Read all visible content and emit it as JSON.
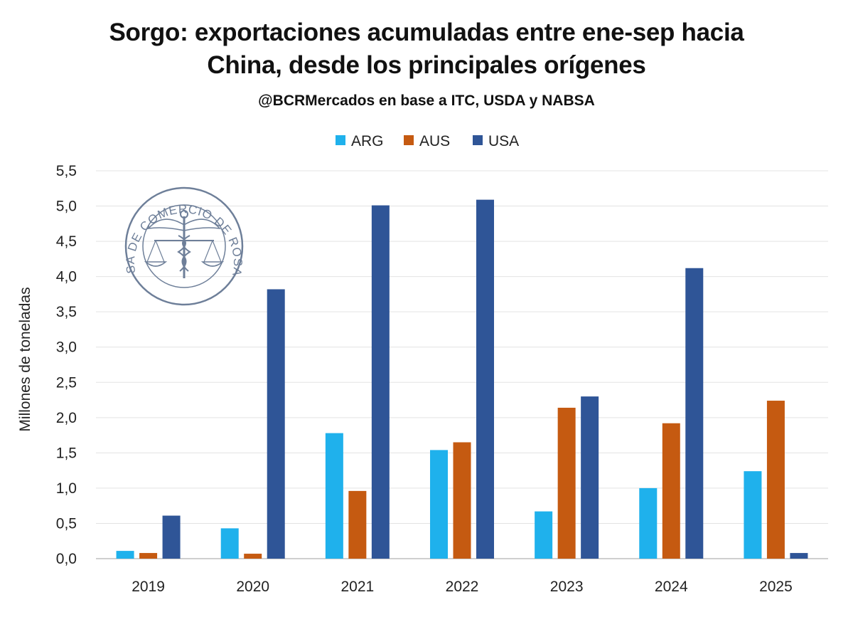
{
  "chart_data": {
    "type": "bar",
    "title_lines": [
      "Sorgo: exportaciones acumuladas entre ene-sep hacia",
      "China, desde los principales orígenes"
    ],
    "subtitle": "@BCRMercados en base a ITC, USDA y NABSA",
    "ylabel": "Millones de toneladas",
    "xlabel": "",
    "ylim": [
      0,
      5.5
    ],
    "ytick_labels": [
      "0,0",
      "0,5",
      "1,0",
      "1,5",
      "2,0",
      "2,5",
      "3,0",
      "3,5",
      "4,0",
      "4,5",
      "5,0",
      "5,5"
    ],
    "categories": [
      "2019",
      "2020",
      "2021",
      "2022",
      "2023",
      "2024",
      "2025"
    ],
    "series": [
      {
        "name": "ARG",
        "color": "#1FB1EC",
        "values": [
          0.11,
          0.43,
          1.78,
          1.54,
          0.67,
          1.0,
          1.24
        ]
      },
      {
        "name": "AUS",
        "color": "#C55A11",
        "values": [
          0.08,
          0.07,
          0.96,
          1.65,
          2.14,
          1.92,
          2.24
        ]
      },
      {
        "name": "USA",
        "color": "#2F5597",
        "values": [
          0.61,
          3.82,
          5.01,
          5.09,
          2.3,
          4.12,
          0.08
        ]
      }
    ],
    "grid": true,
    "legend_position": "top-center"
  },
  "watermark": {
    "text": "BOLSA DE COMERCIO DE ROSARIO",
    "icon": "caduceus-scales-seal"
  }
}
